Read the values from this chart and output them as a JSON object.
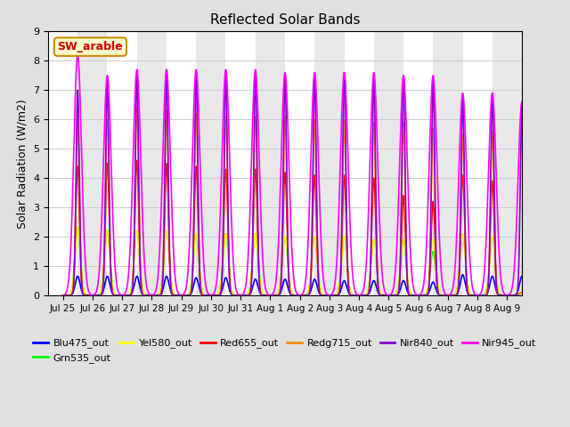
{
  "title": "Reflected Solar Bands",
  "ylabel": "Solar Radiation (W/m2)",
  "ylim": [
    0,
    9.0
  ],
  "yticks": [
    0.0,
    1.0,
    2.0,
    3.0,
    4.0,
    5.0,
    6.0,
    7.0,
    8.0,
    9.0
  ],
  "fig_bg_color": "#e0e0e0",
  "plot_bg_color": "#ffffff",
  "annotation_text": "SW_arable",
  "annotation_color": "#cc0000",
  "annotation_bg": "#ffffcc",
  "annotation_border": "#cc8800",
  "series": [
    {
      "label": "Blu475_out",
      "color": "#0000ff",
      "lw": 1.2
    },
    {
      "label": "Grn535_out",
      "color": "#00ff00",
      "lw": 1.2
    },
    {
      "label": "Yel580_out",
      "color": "#ffff00",
      "lw": 1.2
    },
    {
      "label": "Red655_out",
      "color": "#ff0000",
      "lw": 1.2
    },
    {
      "label": "Redg715_out",
      "color": "#ff8800",
      "lw": 1.2
    },
    {
      "label": "Nir840_out",
      "color": "#8800cc",
      "lw": 1.2
    },
    {
      "label": "Nir945_out",
      "color": "#ff00ff",
      "lw": 1.2
    }
  ],
  "n_days": 16,
  "peaks": {
    "Blu475_out": [
      0.65,
      0.65,
      0.65,
      0.65,
      0.6,
      0.6,
      0.55,
      0.55,
      0.55,
      0.5,
      0.5,
      0.5,
      0.45,
      0.7,
      0.65,
      0.65
    ],
    "Grn535_out": [
      2.3,
      2.2,
      2.2,
      2.2,
      2.1,
      2.1,
      2.1,
      2.0,
      2.0,
      2.0,
      1.9,
      1.9,
      1.5,
      2.1,
      2.0,
      0.1
    ],
    "Yel580_out": [
      2.3,
      2.2,
      2.2,
      2.2,
      2.1,
      2.1,
      2.1,
      2.0,
      2.0,
      2.0,
      1.9,
      1.9,
      1.9,
      2.1,
      2.0,
      0.1
    ],
    "Red655_out": [
      4.4,
      4.5,
      4.6,
      4.5,
      4.4,
      4.3,
      4.3,
      4.2,
      4.1,
      4.1,
      4.0,
      3.4,
      3.2,
      4.1,
      3.9,
      0.1
    ],
    "Redg715_out": [
      5.9,
      6.0,
      6.4,
      6.3,
      6.2,
      6.1,
      6.1,
      6.1,
      6.0,
      6.0,
      5.9,
      5.9,
      5.7,
      5.5,
      5.6,
      0.1
    ],
    "Nir840_out": [
      7.0,
      7.4,
      7.6,
      7.6,
      7.6,
      7.6,
      7.6,
      7.6,
      7.6,
      7.6,
      7.5,
      7.5,
      7.4,
      6.8,
      6.9,
      6.6
    ],
    "Nir945_out": [
      8.2,
      7.5,
      7.7,
      7.7,
      7.7,
      7.7,
      7.7,
      7.6,
      7.6,
      7.6,
      7.6,
      7.5,
      7.5,
      6.9,
      6.9,
      6.6
    ]
  },
  "widths": {
    "Blu475_out": 0.08,
    "Grn535_out": 0.09,
    "Yel580_out": 0.09,
    "Red655_out": 0.065,
    "Redg715_out": 0.06,
    "Nir840_out": 0.055,
    "Nir945_out": 0.13
  },
  "xtick_labels": [
    "Jul 25",
    "Jul 26",
    "Jul 27",
    "Jul 28",
    "Jul 29",
    "Jul 30",
    "Jul 31",
    "Aug 1",
    "Aug 2",
    "Aug 3",
    "Aug 4",
    "Aug 5",
    "Aug 6",
    "Aug 7",
    "Aug 8",
    "Aug 9"
  ]
}
